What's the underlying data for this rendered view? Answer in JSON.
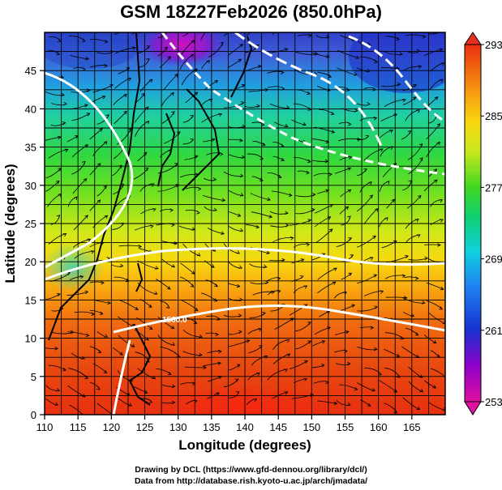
{
  "title": "GSM 18Z27Feb2026 (850.0hPa)",
  "x_axis": {
    "label": "Longitude (degrees)",
    "ticks": [
      "110",
      "115",
      "120",
      "125",
      "130",
      "135",
      "140",
      "145",
      "150",
      "155",
      "160",
      "165"
    ],
    "range": [
      110,
      170
    ]
  },
  "y_axis": {
    "label": "Latitude  (degrees)",
    "ticks": [
      "0",
      "5",
      "10",
      "15",
      "20",
      "25",
      "30",
      "35",
      "40",
      "45"
    ],
    "range": [
      0,
      50
    ]
  },
  "colorbar": {
    "ticks": [
      "293",
      "285",
      "277",
      "269",
      "261",
      "253"
    ],
    "range": [
      253,
      293
    ],
    "colors": [
      "#e8109a",
      "#8a00c8",
      "#1020d0",
      "#1e7cf0",
      "#10d8e0",
      "#10d070",
      "#50e020",
      "#c8e820",
      "#f8e010",
      "#f8a010",
      "#f06010",
      "#e83010"
    ]
  },
  "contour_labels": [
    "1560.0"
  ],
  "credits": {
    "line1": "Drawing by DCL (https://www.gfd-dennou.org/library/dcl/)",
    "line2": "Data from http://database.rish.kyoto-u.ac.jp/arch/jmadata/"
  }
}
